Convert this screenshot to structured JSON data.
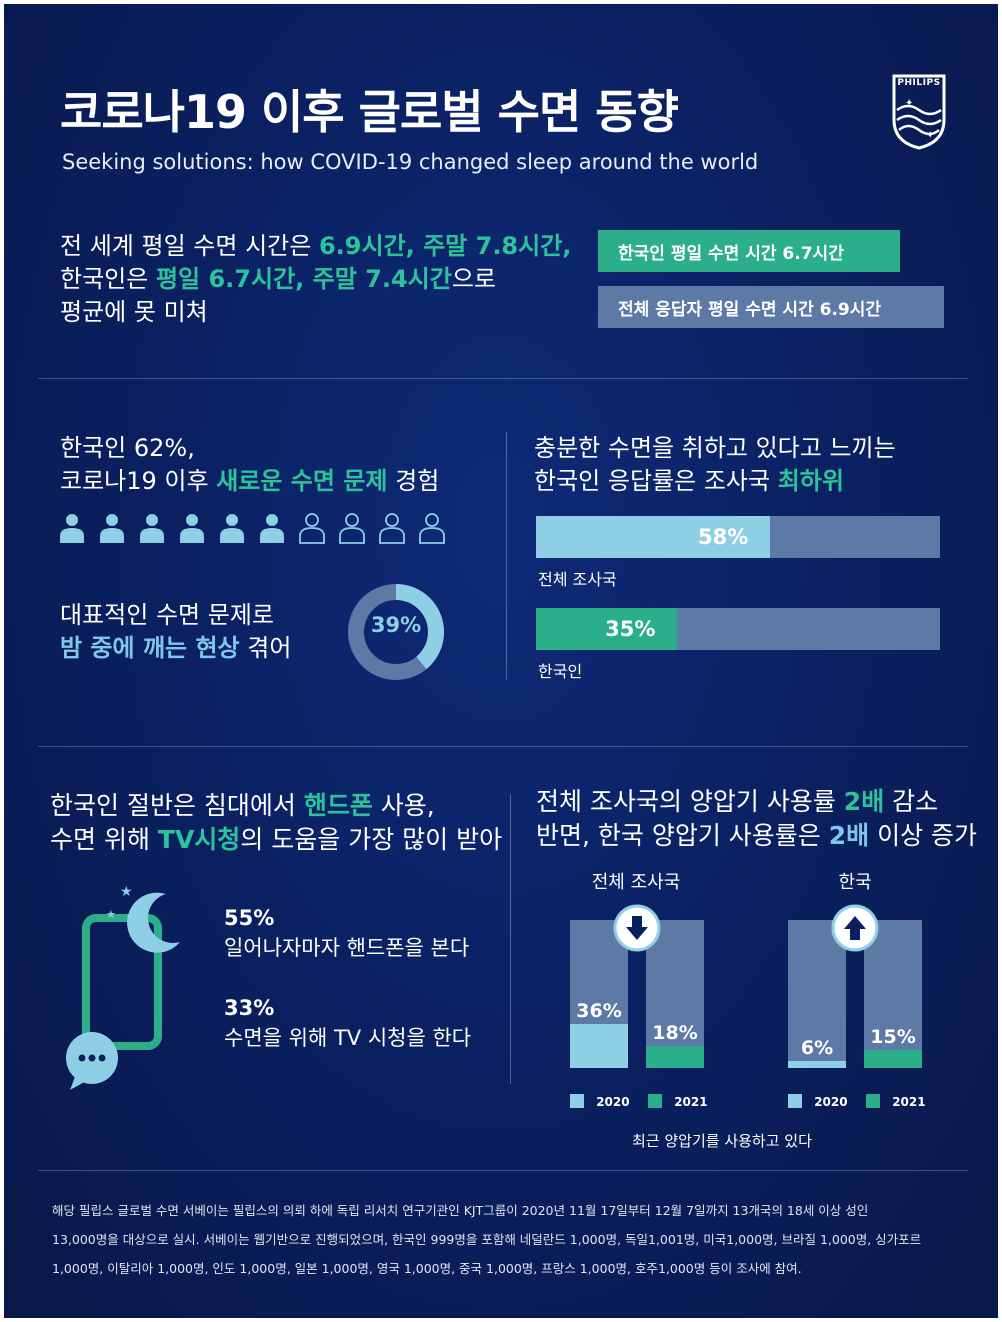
{
  "header": {
    "title": "코로나19 이후 글로벌 수면 동향",
    "subtitle": "Seeking solutions: how COVID-19 changed sleep around the world",
    "logo_text": "PHILIPS"
  },
  "section1": {
    "line1_a": "전 세계 평일 수면 시간은 ",
    "line1_b": "6.9시간, 주말 7.8시간,",
    "line2_a": "한국인은 ",
    "line2_b": "평일 6.7시간, 주말 7.4시간",
    "line2_c": "으로",
    "line3": "평균에 못 미쳐",
    "tag_korea": "한국인 평일 수면 시간  6.7시간",
    "tag_all": "전체 응답자 평일 수면 시간 6.9시간"
  },
  "section2": {
    "left_line1": "한국인 62%,",
    "left_line2_a": "코로나19 이후 ",
    "left_line2_b": "새로운 수면 문제",
    "left_line2_c": " 경험",
    "people_filled": 6,
    "people_total": 10,
    "problem_line1": "대표적인 수면 문제로",
    "problem_line2_a": "밤 중에 깨는 현상",
    "problem_line2_b": " 겪어",
    "donut_label": "39%",
    "donut_value": 39,
    "right_line1": "충분한 수면을 취하고 있다고 느끼는",
    "right_line2_a": "한국인 응답률은 조사국 ",
    "right_line2_b": "최하위",
    "bars": [
      {
        "label": "58%",
        "value": 58,
        "name": "전체 조사국"
      },
      {
        "label": "35%",
        "value": 35,
        "name": "한국인"
      }
    ]
  },
  "section3": {
    "left_line1_a": "한국인 절반은 침대에서 ",
    "left_line1_b": "핸드폰",
    "left_line1_c": " 사용,",
    "left_line2_a": "수면 위해 ",
    "left_line2_b": "TV시청",
    "left_line2_c": "의 도움을 가장 많이 받아",
    "stat1_value": "55%",
    "stat1_text": "일어나자마자 핸드폰을 본다",
    "stat2_value": "33%",
    "stat2_text": "수면을 위해 TV 시청을 한다",
    "right_line1_a": "전체 조사국의 양압기 사용률 ",
    "right_line1_b": "2배",
    "right_line1_c": " 감소",
    "right_line2_a": "반면, 한국 양압기 사용률은 ",
    "right_line2_b": "2배",
    "right_line2_c": " 이상 증가",
    "groups": [
      {
        "name": "전체 조사국",
        "direction": "down",
        "v2020": 36,
        "v2021": 18,
        "l2020": "36%",
        "l2021": "18%"
      },
      {
        "name": "한국",
        "direction": "up",
        "v2020": 6,
        "v2021": 15,
        "l2020": "6%",
        "l2021": "15%"
      }
    ],
    "legend_2020": "2020",
    "legend_2021": "2021",
    "caption": "최근 양압기를 사용하고 있다"
  },
  "footer": {
    "line1": "해당 필립스 글로벌 수면 서베이는 필립스의 의뢰 하에 독립 리서치 연구기관인 KJT그룹이 2020년 11월 17일부터 12월 7일까지 13개국의 18세 이상 성인",
    "line2": "13,000명을 대상으로 실시. 서베이는 웹기반으로 진행되었으며, 한국인 999명을 포함해 네덜란드 1,000명, 독일1,001명, 미국1,000명, 브라질 1,000명, 싱가포르",
    "line3": "1,000명, 이탈리아 1,000명, 인도 1,000명, 일본 1,000명, 영국 1,000명, 중국 1,000명, 프랑스 1,000명, 호주1,000명 등이 조사에 참여."
  },
  "colors": {
    "background": "#0a1f5e",
    "accent_green": "#2bc49a",
    "light_blue": "#8ecfe6",
    "slate": "#5d7aa6"
  }
}
